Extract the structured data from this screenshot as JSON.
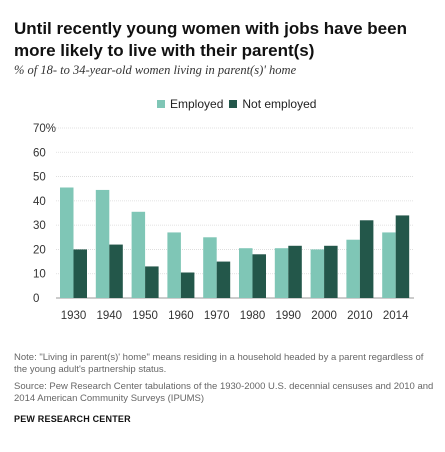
{
  "header": {
    "title": "Until recently young women with jobs have been more likely to live with their parent(s)",
    "subtitle": "% of 18- to 34-year-old women living in parent(s)' home"
  },
  "chart_data": {
    "type": "bar",
    "categories": [
      "1930",
      "1940",
      "1950",
      "1960",
      "1970",
      "1980",
      "1990",
      "2000",
      "2010",
      "2014"
    ],
    "series": [
      {
        "name": "Employed",
        "color": "#7fc6b6",
        "values": [
          45.5,
          44.5,
          35.5,
          27,
          25,
          20.5,
          20.5,
          20,
          24,
          27
        ]
      },
      {
        "name": "Not employed",
        "color": "#23574a",
        "values": [
          20,
          22,
          13,
          10.5,
          15,
          18,
          21.5,
          21.5,
          32,
          34
        ]
      }
    ],
    "y_ticks": [
      "70%",
      "60",
      "50",
      "40",
      "30",
      "20",
      "10",
      "0"
    ],
    "ylim": [
      0,
      70
    ],
    "grid": true,
    "legend_position": "top"
  },
  "footer": {
    "note": "Note: \"Living in parent(s)' home\" means residing in a household headed by a parent regardless of the young adult's partnership status.",
    "source": "Source: Pew Research Center tabulations of the 1930-2000 U.S. decennial censuses and 2010 and 2014 American Community Surveys (IPUMS)",
    "brand": "PEW RESEARCH CENTER"
  }
}
